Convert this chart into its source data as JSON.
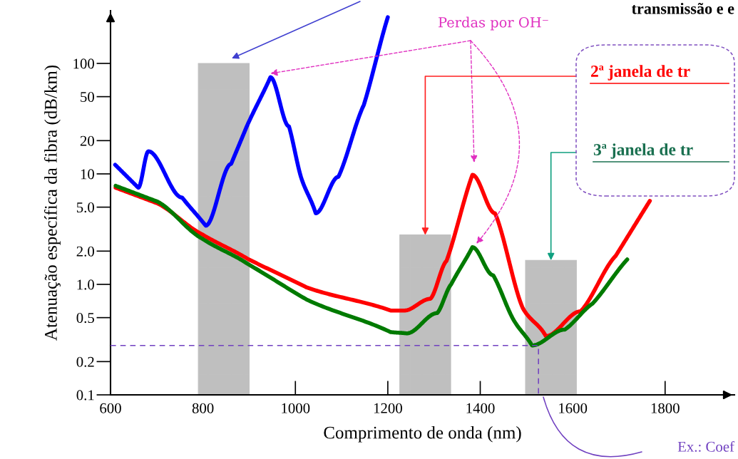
{
  "chart_data": {
    "type": "line",
    "xlabel": "Comprimento de onda (nm)",
    "ylabel": "Atenuação específica da fibra (dB/km)",
    "log": "y",
    "xlim": [
      600,
      1950
    ],
    "ylim": [
      0.1,
      300
    ],
    "xticks": [
      600,
      800,
      1000,
      1200,
      1400,
      1600,
      1800
    ],
    "yticks": [
      {
        "value": 0.1,
        "label": "0.1"
      },
      {
        "value": 0.2,
        "label": "0.2"
      },
      {
        "value": 0.5,
        "label": "0.5"
      },
      {
        "value": 1,
        "label": "1.0"
      },
      {
        "value": 2,
        "label": "2.0"
      },
      {
        "value": 5,
        "label": "5.0"
      },
      10,
      20,
      50,
      100
    ],
    "series": [
      {
        "type": "bar",
        "color": "#bfbfbf",
        "x": [
          845,
          1281,
          1553
        ],
        "values": [
          100,
          2.8,
          1.65
        ]
      },
      {
        "color": "#0000ff",
        "x": [
          610,
          660,
          682,
          755,
          806,
          861,
          895,
          946,
          986,
          1012,
          1044,
          1093,
          1148,
          1200
        ],
        "values": [
          12.1,
          7.5,
          16.0,
          6.1,
          3.4,
          12.3,
          27,
          75,
          27,
          9.4,
          4.4,
          9.4,
          42,
          262
        ]
      },
      {
        "color": "#ff0000",
        "x": [
          611,
          702,
          798,
          896,
          1024,
          1206,
          1236,
          1292,
          1327,
          1383,
          1432,
          1492,
          1542,
          1617,
          1693,
          1767
        ],
        "values": [
          7.5,
          5.4,
          2.84,
          1.71,
          0.94,
          0.58,
          0.58,
          0.74,
          1.63,
          9.8,
          4.4,
          0.61,
          0.34,
          0.57,
          1.81,
          5.7
        ]
      },
      {
        "color": "#007a00",
        "x": [
          611,
          702,
          798,
          896,
          1024,
          1206,
          1241,
          1307,
          1337,
          1383,
          1428,
          1473,
          1512,
          1583,
          1643,
          1718
        ],
        "values": [
          7.8,
          5.6,
          2.6,
          1.54,
          0.73,
          0.37,
          0.36,
          0.55,
          1.0,
          2.17,
          1.21,
          0.47,
          0.28,
          0.39,
          0.67,
          1.68
        ]
      },
      {
        "color": "#7040c0",
        "line_style": "dashed",
        "x": [
          600,
          1526,
          1526
        ],
        "values": [
          0.28,
          0.28,
          0.1
        ]
      }
    ],
    "annotations": [
      {
        "text": "Perdas por OH⁻",
        "x": 946,
        "y": 75
      },
      {
        "text": "2ª janela de tr",
        "x": 1281,
        "y": 2.8
      },
      {
        "text": "3ª janela de tr",
        "x": 1553,
        "y": 1.65
      },
      "transmissão e e",
      "Ex.: Coef"
    ]
  }
}
